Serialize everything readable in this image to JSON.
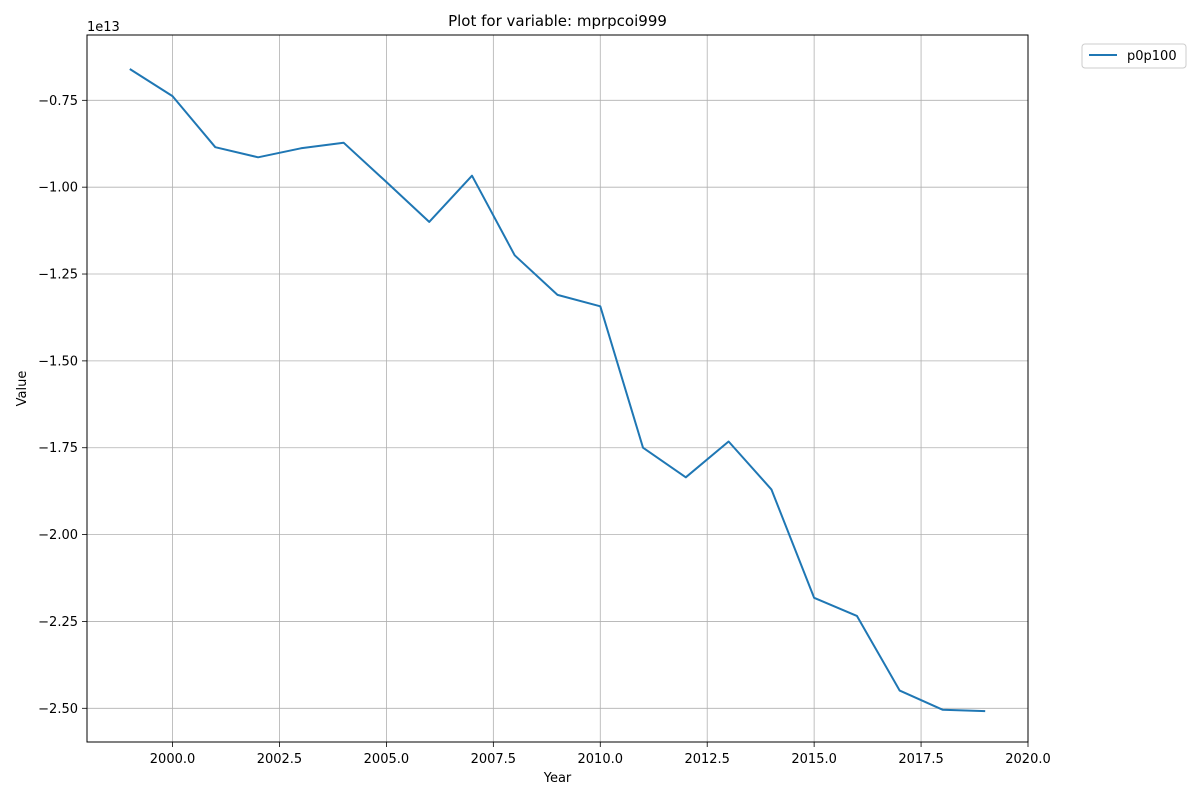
{
  "chart_data": {
    "type": "line",
    "title": "Plot for variable: mprpcoi999",
    "xlabel": "Year",
    "ylabel": "Value",
    "y_offset_label": "1e13",
    "y_scale_factor": 10000000000000.0,
    "xlim": [
      1998.0,
      2020.0
    ],
    "ylim": [
      -2.597,
      -0.562
    ],
    "x_ticks": [
      2000.0,
      2002.5,
      2005.0,
      2007.5,
      2010.0,
      2012.5,
      2015.0,
      2017.5,
      2020.0
    ],
    "x_tick_labels": [
      "2000.0",
      "2002.5",
      "2005.0",
      "2007.5",
      "2010.0",
      "2012.5",
      "2015.0",
      "2017.5",
      "2020.0"
    ],
    "y_ticks": [
      -0.75,
      -1.0,
      -1.25,
      -1.5,
      -1.75,
      -2.0,
      -2.25,
      -2.5
    ],
    "y_tick_labels": [
      "−0.75",
      "−1.00",
      "−1.25",
      "−1.50",
      "−1.75",
      "−2.00",
      "−2.25",
      "−2.50"
    ],
    "grid": true,
    "legend_position": "outside-top-right",
    "series": [
      {
        "name": "p0p100",
        "color": "#1f77b4",
        "x": [
          1999,
          2000,
          2001,
          2002,
          2003,
          2004,
          2005,
          2006,
          2007,
          2008,
          2009,
          2010,
          2011,
          2012,
          2013,
          2014,
          2015,
          2016,
          2017,
          2018,
          2019
        ],
        "y": [
          -0.66,
          -0.738,
          -0.885,
          -0.914,
          -0.888,
          -0.872,
          -0.985,
          -1.1,
          -0.967,
          -1.196,
          -1.31,
          -1.343,
          -1.75,
          -1.835,
          -1.732,
          -1.87,
          -2.182,
          -2.234,
          -2.449,
          -2.504,
          -2.508
        ]
      }
    ]
  }
}
